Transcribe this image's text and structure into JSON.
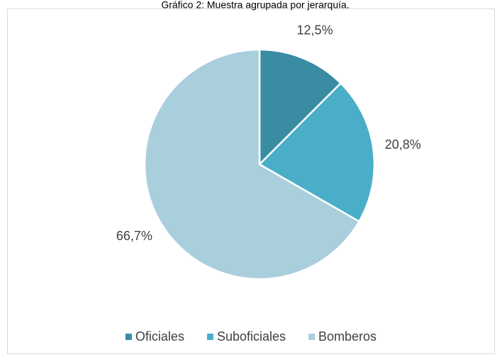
{
  "chart_data": {
    "type": "pie",
    "title": "Gráfico 2: Muestra agrupada por jerarquía.",
    "categories": [
      "Oficiales",
      "Suboficiales",
      "Bomberos"
    ],
    "values": [
      12.5,
      20.8,
      66.7
    ],
    "value_labels": [
      "12,5%",
      "20,8%",
      "66,7%"
    ],
    "colors": [
      "#3a8ca3",
      "#4aaec8",
      "#a9cfdd"
    ],
    "legend": "bottom"
  }
}
